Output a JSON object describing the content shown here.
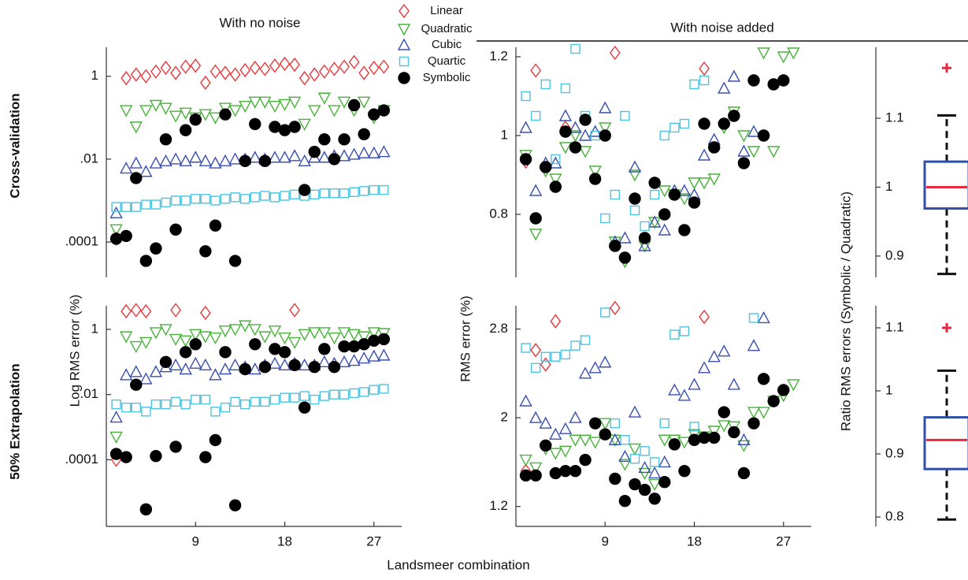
{
  "figure": {
    "col_titles": [
      "With no noise",
      "With noise added"
    ],
    "row_titles": [
      "Cross-validation",
      "50% Extrapolation"
    ],
    "ylabel_left": "Log RMS error (%)",
    "ylabel_mid": "RMS error (%)",
    "ylabel_right": "Ratio RMS errors (Symbolic / Quadratic)",
    "xlabel": "Landsmeer combination"
  },
  "chart_data": [
    {
      "type": "scatter",
      "scale": "log",
      "ylim": [
        1.4e-05,
        5
      ],
      "yticks": [
        1,
        {
          "value": 0.01,
          "label": ".01"
        },
        {
          "value": 0.0001,
          "label": ".0001"
        }
      ],
      "xlim": [
        0,
        29.8
      ],
      "x": [
        1,
        2,
        3,
        4,
        5,
        6,
        7,
        8,
        9,
        10,
        11,
        12,
        13,
        14,
        15,
        16,
        17,
        18,
        19,
        20,
        21,
        22,
        23,
        24,
        25,
        26,
        27,
        28
      ],
      "series": [
        {
          "name": "Linear",
          "color": "#e8383b",
          "marker": "diamond",
          "values": [
            0.00012,
            0.9,
            1.1,
            1.0,
            1.3,
            1.6,
            1.2,
            1.7,
            1.8,
            0.7,
            1.3,
            1.2,
            1.1,
            1.4,
            1.6,
            1.5,
            1.8,
            2.0,
            1.9,
            0.9,
            1.1,
            1.3,
            1.5,
            1.7,
            2.2,
            1.2,
            1.6,
            1.7
          ]
        },
        {
          "name": "Quadratic",
          "color": "#48b23a",
          "marker": "triangle-down",
          "values": [
            0.0002,
            0.15,
            0.06,
            0.15,
            0.2,
            0.17,
            0.11,
            0.13,
            0.1,
            0.12,
            0.1,
            0.17,
            0.15,
            0.19,
            0.24,
            0.24,
            0.19,
            0.21,
            0.24,
            0.07,
            0.15,
            0.3,
            0.15,
            0.24,
            0.15,
            0.24,
            0.1,
            0.15
          ]
        },
        {
          "name": "Cubic",
          "color": "#3a4fb0",
          "marker": "triangle-up",
          "values": [
            0.0005,
            0.006,
            0.008,
            0.005,
            0.008,
            0.009,
            0.01,
            0.009,
            0.011,
            0.009,
            0.008,
            0.009,
            0.01,
            0.01,
            0.011,
            0.01,
            0.011,
            0.011,
            0.012,
            0.009,
            0.011,
            0.011,
            0.012,
            0.012,
            0.013,
            0.014,
            0.014,
            0.015
          ]
        },
        {
          "name": "Quartic",
          "color": "#4cc4e0",
          "marker": "square",
          "values": [
            0.0007,
            0.0007,
            0.0007,
            0.0008,
            0.0008,
            0.0009,
            0.001,
            0.001,
            0.0011,
            0.0011,
            0.001,
            0.0011,
            0.0012,
            0.0011,
            0.0012,
            0.0013,
            0.0012,
            0.0013,
            0.0014,
            0.0013,
            0.0014,
            0.0015,
            0.0015,
            0.0015,
            0.0016,
            0.0017,
            0.0018,
            0.0018
          ]
        },
        {
          "name": "Symbolic",
          "color": "#000000",
          "marker": "circle",
          "values": [
            0.00012,
            0.00014,
            0.0035,
            3.5e-05,
            7e-05,
            0.03,
            0.0002,
            0.05,
            0.09,
            6e-05,
            0.00025,
            0.12,
            3.5e-05,
            0.009,
            0.07,
            0.009,
            0.06,
            0.05,
            0.06,
            0.0018,
            0.015,
            0.03,
            0.01,
            0.03,
            0.2,
            0.04,
            0.12,
            0.15
          ]
        }
      ]
    },
    {
      "type": "scatter",
      "scale": "log",
      "ylim": [
        9e-07,
        5.3
      ],
      "yticks": [
        1,
        {
          "value": 0.01,
          "label": ".01"
        },
        {
          "value": 0.0001,
          "label": ".0001"
        }
      ],
      "xlim": [
        0,
        29.8
      ],
      "xticks": [
        9,
        18,
        27
      ],
      "x": [
        1,
        2,
        3,
        4,
        5,
        6,
        7,
        8,
        9,
        10,
        11,
        12,
        13,
        14,
        15,
        16,
        17,
        18,
        19,
        20,
        21,
        22,
        23,
        24,
        25,
        26,
        27,
        28
      ],
      "series": [
        {
          "values": [
            0.0001,
            3.6,
            3.9,
            3.6,
            null,
            null,
            3.9,
            null,
            null,
            3.2,
            null,
            null,
            null,
            null,
            null,
            null,
            null,
            null,
            3.9,
            null,
            null,
            null,
            null,
            null,
            null,
            null,
            null,
            null
          ]
        },
        {
          "values": [
            0.0005,
            0.6,
            0.3,
            0.4,
            0.8,
            1.0,
            0.5,
            0.45,
            0.7,
            0.6,
            0.55,
            0.9,
            1.0,
            1.3,
            1.0,
            0.6,
            0.9,
            0.55,
            0.4,
            0.7,
            0.8,
            0.8,
            0.55,
            0.8,
            0.7,
            0.6,
            0.8,
            0.75
          ]
        },
        {
          "values": [
            0.002,
            0.04,
            0.05,
            0.03,
            0.05,
            0.07,
            0.08,
            0.06,
            0.09,
            0.08,
            0.04,
            0.06,
            0.08,
            0.07,
            0.06,
            0.08,
            0.09,
            0.08,
            0.09,
            0.08,
            0.08,
            0.1,
            0.09,
            0.1,
            0.11,
            0.13,
            0.15,
            0.16
          ]
        },
        {
          "values": [
            0.005,
            0.004,
            0.004,
            0.003,
            0.005,
            0.005,
            0.006,
            0.005,
            0.007,
            0.007,
            0.003,
            0.004,
            0.006,
            0.005,
            0.006,
            0.006,
            0.007,
            0.008,
            0.008,
            0.009,
            0.007,
            0.009,
            0.01,
            0.01,
            0.011,
            0.012,
            0.014,
            0.015
          ]
        },
        {
          "values": [
            0.00015,
            0.00012,
            0.02,
            3e-06,
            0.00013,
            0.1,
            0.00025,
            0.2,
            0.35,
            0.00012,
            0.0004,
            0.2,
            4e-06,
            0.06,
            0.35,
            0.07,
            0.25,
            0.2,
            0.08,
            0.004,
            0.07,
            0.25,
            0.07,
            0.3,
            0.3,
            0.35,
            0.45,
            0.5
          ]
        }
      ]
    },
    {
      "type": "scatter",
      "ylim": [
        0.64,
        1.224
      ],
      "yticks": [
        0.8,
        1,
        1.2
      ],
      "xlim": [
        0,
        29.8
      ],
      "x": [
        1,
        2,
        3,
        4,
        5,
        6,
        7,
        8,
        9,
        10,
        11,
        12,
        13,
        14,
        15,
        16,
        17,
        18,
        19,
        20,
        21,
        22,
        23,
        24,
        25,
        26,
        27,
        28
      ],
      "series": [
        {
          "values": [
            0.934,
            1.165,
            null,
            null,
            1.02,
            null,
            null,
            null,
            null,
            1.21,
            null,
            null,
            null,
            null,
            null,
            null,
            null,
            null,
            1.17,
            null,
            null,
            null,
            null,
            null,
            null,
            null,
            null,
            null
          ]
        },
        {
          "values": [
            0.95,
            0.75,
            0.91,
            0.89,
            0.97,
            1.0,
            0.96,
            0.91,
            1.02,
            0.73,
            0.68,
            0.9,
            0.72,
            0.78,
            0.86,
            0.85,
            0.84,
            0.88,
            0.88,
            0.89,
            1.02,
            1.06,
            1.0,
            0.96,
            1.21,
            0.96,
            1.2,
            1.21
          ]
        },
        {
          "values": [
            1.02,
            0.86,
            0.93,
            0.93,
            1.05,
            1.02,
            1.0,
            1.01,
            1.07,
            0.73,
            0.74,
            0.92,
            0.72,
            0.78,
            0.76,
            0.86,
            0.86,
            0.85,
            0.95,
            0.99,
            1.12,
            1.15,
            0.96,
            1.01,
            null,
            null,
            null,
            null
          ]
        },
        {
          "values": [
            1.1,
            1.05,
            1.13,
            0.94,
            1.12,
            1.22,
            1.05,
            1.0,
            0.79,
            0.85,
            1.05,
            0.81,
            0.77,
            0.85,
            1.0,
            1.02,
            1.03,
            1.13,
            1.14,
            null,
            null,
            null,
            null,
            null,
            null,
            null,
            null,
            null
          ]
        },
        {
          "values": [
            0.94,
            0.79,
            0.92,
            0.87,
            1.01,
            0.97,
            1.04,
            0.89,
            1.0,
            0.72,
            0.69,
            0.84,
            0.74,
            0.88,
            0.8,
            0.85,
            0.76,
            0.83,
            1.03,
            0.97,
            1.03,
            1.05,
            0.93,
            1.14,
            1.0,
            1.13,
            1.14,
            null
          ]
        }
      ]
    },
    {
      "type": "scatter",
      "ylim": [
        1.02,
        3.01
      ],
      "yticks": [
        1.2,
        2,
        2.8
      ],
      "xlim": [
        0,
        29.8
      ],
      "xticks": [
        9,
        18,
        27
      ],
      "x": [
        1,
        2,
        3,
        4,
        5,
        6,
        7,
        8,
        9,
        10,
        11,
        12,
        13,
        14,
        15,
        16,
        17,
        18,
        19,
        20,
        21,
        22,
        23,
        24,
        25,
        26,
        27,
        28
      ],
      "series": [
        {
          "values": [
            1.52,
            2.61,
            2.48,
            2.87,
            null,
            null,
            null,
            null,
            null,
            2.99,
            null,
            null,
            null,
            null,
            null,
            null,
            null,
            null,
            2.91,
            null,
            null,
            null,
            null,
            null,
            null,
            null,
            null,
            null
          ]
        },
        {
          "values": [
            1.62,
            1.55,
            1.72,
            1.68,
            1.7,
            1.8,
            1.8,
            1.78,
            1.95,
            1.8,
            1.58,
            1.72,
            1.5,
            1.4,
            1.8,
            1.8,
            1.78,
            1.85,
            1.83,
            1.88,
            1.93,
            1.92,
            1.75,
            2.05,
            2.05,
            2.15,
            2.2,
            2.3
          ]
        },
        {
          "values": [
            2.15,
            2.0,
            1.95,
            1.85,
            1.9,
            2.0,
            2.4,
            2.45,
            2.5,
            1.8,
            1.65,
            2.05,
            1.55,
            1.5,
            1.6,
            2.25,
            2.2,
            2.3,
            2.45,
            2.55,
            2.6,
            2.3,
            1.8,
            2.65,
            2.9,
            null,
            null,
            null
          ]
        },
        {
          "values": [
            2.63,
            2.45,
            2.55,
            2.55,
            2.57,
            2.65,
            2.7,
            null,
            2.95,
            1.95,
            1.8,
            1.63,
            1.7,
            1.6,
            1.95,
            2.75,
            2.78,
            1.92,
            null,
            null,
            null,
            null,
            null,
            2.9,
            null,
            null,
            null,
            null
          ]
        },
        {
          "values": [
            1.48,
            1.48,
            1.75,
            1.5,
            1.52,
            1.52,
            1.62,
            1.95,
            1.85,
            1.45,
            1.25,
            1.4,
            1.35,
            1.27,
            1.42,
            1.76,
            1.52,
            1.8,
            1.82,
            1.82,
            2.05,
            1.87,
            1.5,
            1.95,
            2.35,
            2.15,
            2.25,
            null
          ]
        }
      ]
    },
    {
      "type": "box",
      "ylim": [
        0.869,
        1.203
      ],
      "yticks": [
        0.9,
        1,
        1.1
      ],
      "box_color": "#2f4fa8",
      "median_color": "#e8283b",
      "whislo": 0.874,
      "q1": 0.969,
      "median": 1.0,
      "q3": 1.037,
      "whishi": 1.104,
      "fliers": [
        1.173
      ]
    },
    {
      "type": "box",
      "ylim": [
        0.785,
        1.135
      ],
      "yticks": [
        0.8,
        0.9,
        1,
        1.1
      ],
      "box_color": "#2f4fa8",
      "median_color": "#e8283b",
      "whislo": 0.796,
      "q1": 0.876,
      "median": 0.922,
      "q3": 0.958,
      "whishi": 1.032,
      "fliers": [
        1.1
      ]
    }
  ]
}
